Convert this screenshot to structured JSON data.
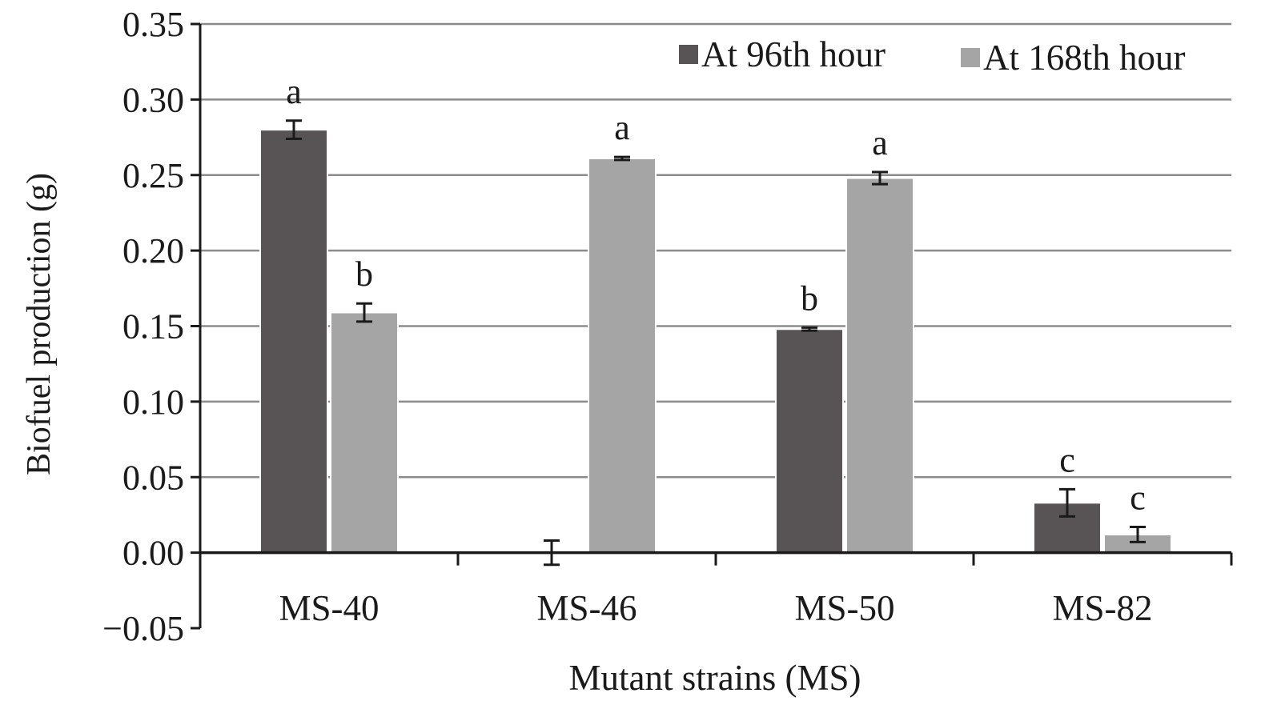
{
  "chart_data": {
    "type": "bar",
    "xlabel": "Mutant strains (MS)",
    "ylabel": "Biofuel production (g)",
    "ylim": [
      -0.05,
      0.35
    ],
    "yticks": [
      "−0.05",
      "0.00",
      "0.05",
      "0.10",
      "0.15",
      "0.20",
      "0.25",
      "0.30",
      "0.35"
    ],
    "grid": true,
    "legend_position": "top-right",
    "categories": [
      "MS-40",
      "MS-46",
      "MS-50",
      "MS-82"
    ],
    "series": [
      {
        "name": "At 96th hour",
        "color": "#585455",
        "values": [
          0.28,
          0.0,
          0.148,
          0.033
        ],
        "errors": [
          0.006,
          0.008,
          0.001,
          0.009
        ],
        "labels": [
          "a",
          "",
          "b",
          "c"
        ]
      },
      {
        "name": "At 168th hour",
        "color": "#a5a5a5",
        "values": [
          0.159,
          0.261,
          0.248,
          0.012
        ],
        "errors": [
          0.006,
          0.001,
          0.004,
          0.005
        ],
        "labels": [
          "b",
          "a",
          "a",
          "c"
        ]
      }
    ]
  }
}
